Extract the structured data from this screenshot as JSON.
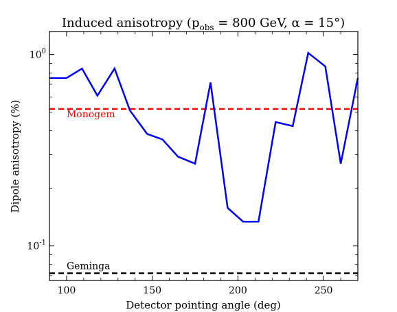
{
  "chart_data": {
    "type": "line",
    "title": "Induced anisotropy (p",
    "title_sub": "obs",
    "title_rest": " = 800 GeV, α = 15°)",
    "xlabel": "Detector pointing angle (deg)",
    "ylabel": "Dipole anisotropy (%)",
    "xlim": [
      90,
      270
    ],
    "ylim": [
      0.066,
      1.32
    ],
    "yscale": "log",
    "grid": false,
    "x_ticks": [
      100,
      150,
      200,
      250
    ],
    "x_tick_labels": [
      "100",
      "150",
      "200",
      "250"
    ],
    "y_major_ticks": [
      0.1,
      1.0
    ],
    "y_tick_labels": [
      "10",
      "10"
    ],
    "y_tick_exponents": [
      "-1",
      "0"
    ],
    "series": [
      {
        "color": "#0000ff",
        "x": [
          90,
          100,
          109,
          118,
          128,
          137,
          147,
          156,
          165,
          175,
          184,
          194,
          203,
          212,
          222,
          232,
          241,
          251,
          260,
          270
        ],
        "y": [
          0.755,
          0.755,
          0.845,
          0.61,
          0.845,
          0.51,
          0.385,
          0.36,
          0.293,
          0.269,
          0.715,
          0.158,
          0.134,
          0.134,
          0.444,
          0.423,
          1.02,
          0.868,
          0.269,
          0.755
        ]
      }
    ],
    "reference_lines": [
      {
        "name": "Monogem",
        "y": 0.52,
        "color": "#ff0000",
        "style": "dashed",
        "label_x": 100
      },
      {
        "name": "Geminga",
        "y": 0.072,
        "color": "#000000",
        "style": "dashed",
        "label_x": 100
      }
    ]
  }
}
